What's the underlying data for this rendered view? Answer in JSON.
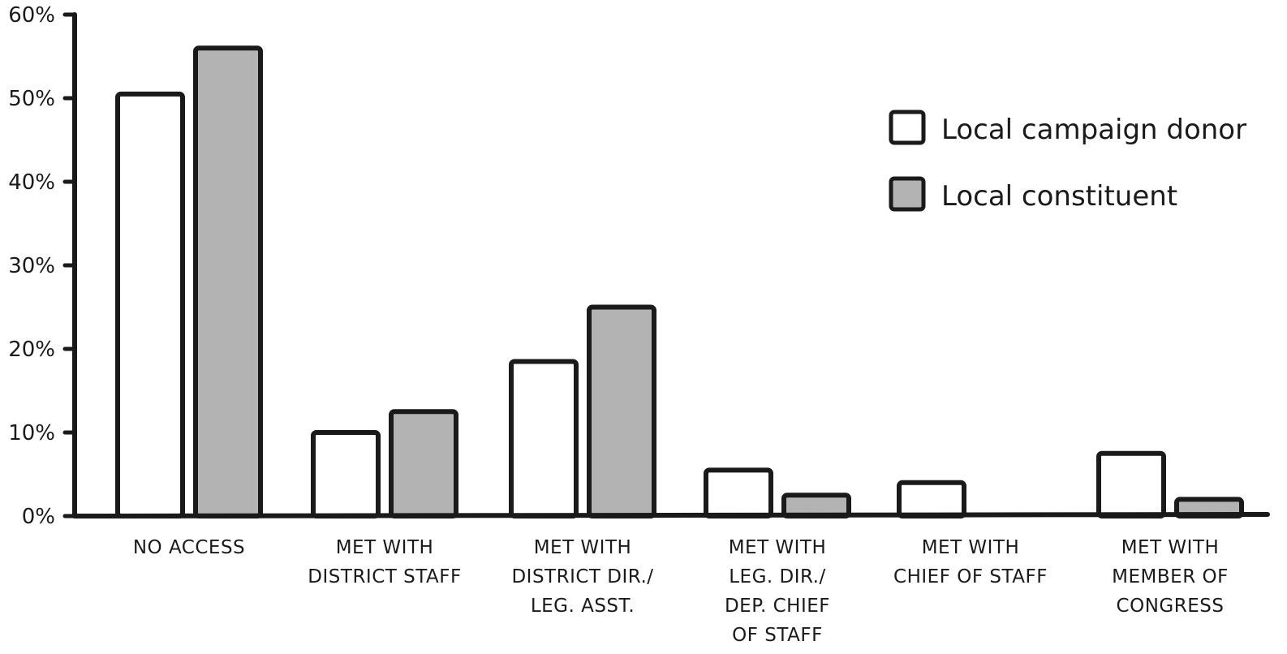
{
  "chart_data": {
    "type": "bar",
    "categories": [
      [
        "NO ACCESS"
      ],
      [
        "MET WITH",
        "DISTRICT STAFF"
      ],
      [
        "MET WITH",
        "DISTRICT DIR./",
        "LEG. ASST."
      ],
      [
        "MET WITH",
        "LEG. DIR./",
        "DEP. CHIEF",
        "OF STAFF"
      ],
      [
        "MET WITH",
        "CHIEF OF STAFF"
      ],
      [
        "MET WITH",
        "MEMBER OF",
        "CONGRESS"
      ]
    ],
    "series": [
      {
        "name": "Local campaign donor",
        "color": "#ffffff",
        "values": [
          50.5,
          10,
          18.5,
          5.5,
          4,
          7.5
        ]
      },
      {
        "name": "Local constituent",
        "color": "#b3b3b3",
        "values": [
          56,
          12.5,
          25,
          2.5,
          0,
          2
        ]
      }
    ],
    "ylim": [
      0,
      60
    ],
    "yticks": [
      "0%",
      "10%",
      "20%",
      "30%",
      "40%",
      "50%",
      "60%"
    ],
    "title": "",
    "xlabel": "",
    "ylabel": "",
    "legend": "top-right",
    "grid": false
  }
}
